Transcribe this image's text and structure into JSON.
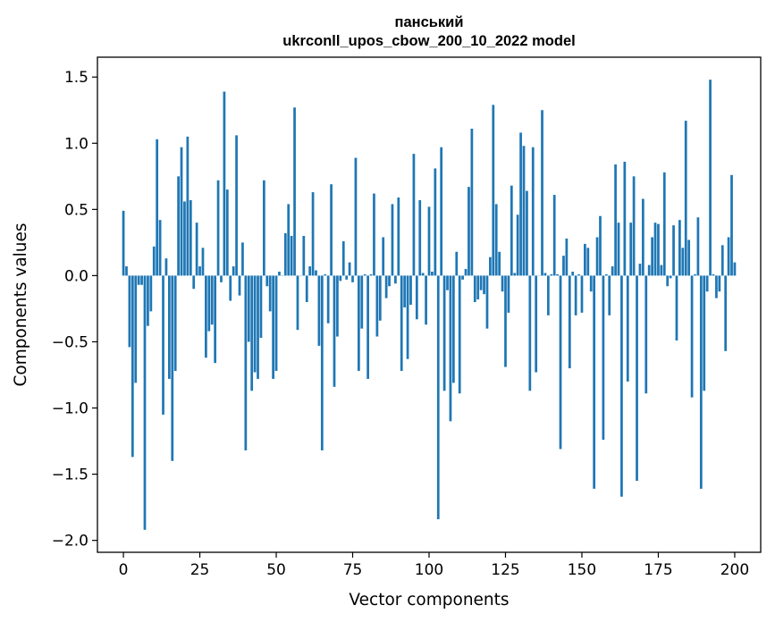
{
  "chart_data": {
    "type": "bar",
    "title": "панський",
    "subtitle": "ukrconll_upos_cbow_200_10_2022 model",
    "xlabel": "Vector components",
    "ylabel": "Components values",
    "xlim": [
      -8.5,
      208.5
    ],
    "ylim": [
      -2.09,
      1.65
    ],
    "xticks": [
      0,
      25,
      50,
      75,
      100,
      125,
      150,
      175,
      200
    ],
    "yticks": [
      -2.0,
      -1.5,
      -1.0,
      -0.5,
      0.0,
      0.5,
      1.0,
      1.5
    ],
    "ytick_labels": [
      "−2.0",
      "−1.5",
      "−1.0",
      "−0.5",
      "0.0",
      "0.5",
      "1.0",
      "1.5"
    ],
    "bar_color": "#1f77b4",
    "values": [
      0.49,
      0.07,
      -0.54,
      -1.37,
      -0.81,
      -0.07,
      -0.07,
      -1.92,
      -0.38,
      -0.27,
      0.22,
      1.03,
      0.42,
      -1.05,
      0.13,
      -0.78,
      -1.4,
      -0.72,
      0.75,
      0.97,
      0.56,
      1.05,
      0.57,
      -0.1,
      0.4,
      0.07,
      0.21,
      -0.62,
      -0.42,
      -0.37,
      -0.66,
      0.72,
      -0.05,
      1.39,
      0.65,
      -0.19,
      0.07,
      1.06,
      -0.15,
      0.25,
      -1.32,
      -0.5,
      -0.87,
      -0.73,
      -0.78,
      -0.47,
      0.72,
      -0.08,
      -0.27,
      -0.78,
      -0.72,
      0.03,
      0.0,
      0.32,
      0.54,
      0.3,
      1.27,
      -0.41,
      0.0,
      0.3,
      -0.2,
      0.07,
      0.63,
      0.04,
      -0.53,
      -1.32,
      0.01,
      -0.36,
      0.69,
      -0.84,
      -0.46,
      -0.04,
      0.26,
      -0.03,
      0.1,
      -0.05,
      0.89,
      -0.72,
      -0.4,
      0.01,
      -0.78,
      0.01,
      0.62,
      -0.46,
      -0.34,
      0.29,
      -0.17,
      -0.08,
      0.54,
      -0.06,
      0.59,
      -0.72,
      -0.24,
      -0.63,
      -0.22,
      0.92,
      -0.33,
      0.57,
      0.02,
      -0.37,
      0.52,
      0.03,
      0.81,
      -1.84,
      0.97,
      -0.87,
      -0.11,
      -1.1,
      -0.81,
      0.18,
      -0.89,
      -0.03,
      0.05,
      0.67,
      1.11,
      -0.2,
      -0.18,
      -0.11,
      -0.14,
      -0.4,
      0.14,
      1.29,
      0.54,
      0.18,
      -0.12,
      -0.69,
      -0.28,
      0.68,
      0.02,
      0.46,
      1.08,
      0.98,
      0.64,
      -0.87,
      0.97,
      -0.73,
      0.0,
      1.25,
      0.02,
      -0.3,
      0.01,
      0.61,
      0.01,
      -1.31,
      0.15,
      0.28,
      -0.7,
      0.03,
      -0.3,
      0.01,
      -0.28,
      0.24,
      0.21,
      -0.12,
      -1.61,
      0.29,
      0.45,
      -1.24,
      0.01,
      -0.3,
      0.07,
      0.84,
      0.4,
      -1.67,
      0.86,
      -0.8,
      0.4,
      0.75,
      -1.55,
      0.09,
      0.58,
      -0.89,
      0.08,
      0.29,
      0.4,
      0.39,
      0.08,
      0.78,
      -0.08,
      -0.02,
      0.38,
      -0.49,
      0.42,
      0.21,
      1.17,
      0.27,
      -0.92,
      0.01,
      0.44,
      -1.61,
      -0.87,
      -0.12,
      1.48,
      0.01,
      -0.17,
      -0.12,
      0.23,
      -0.57,
      0.29,
      0.76,
      0.1
    ]
  }
}
